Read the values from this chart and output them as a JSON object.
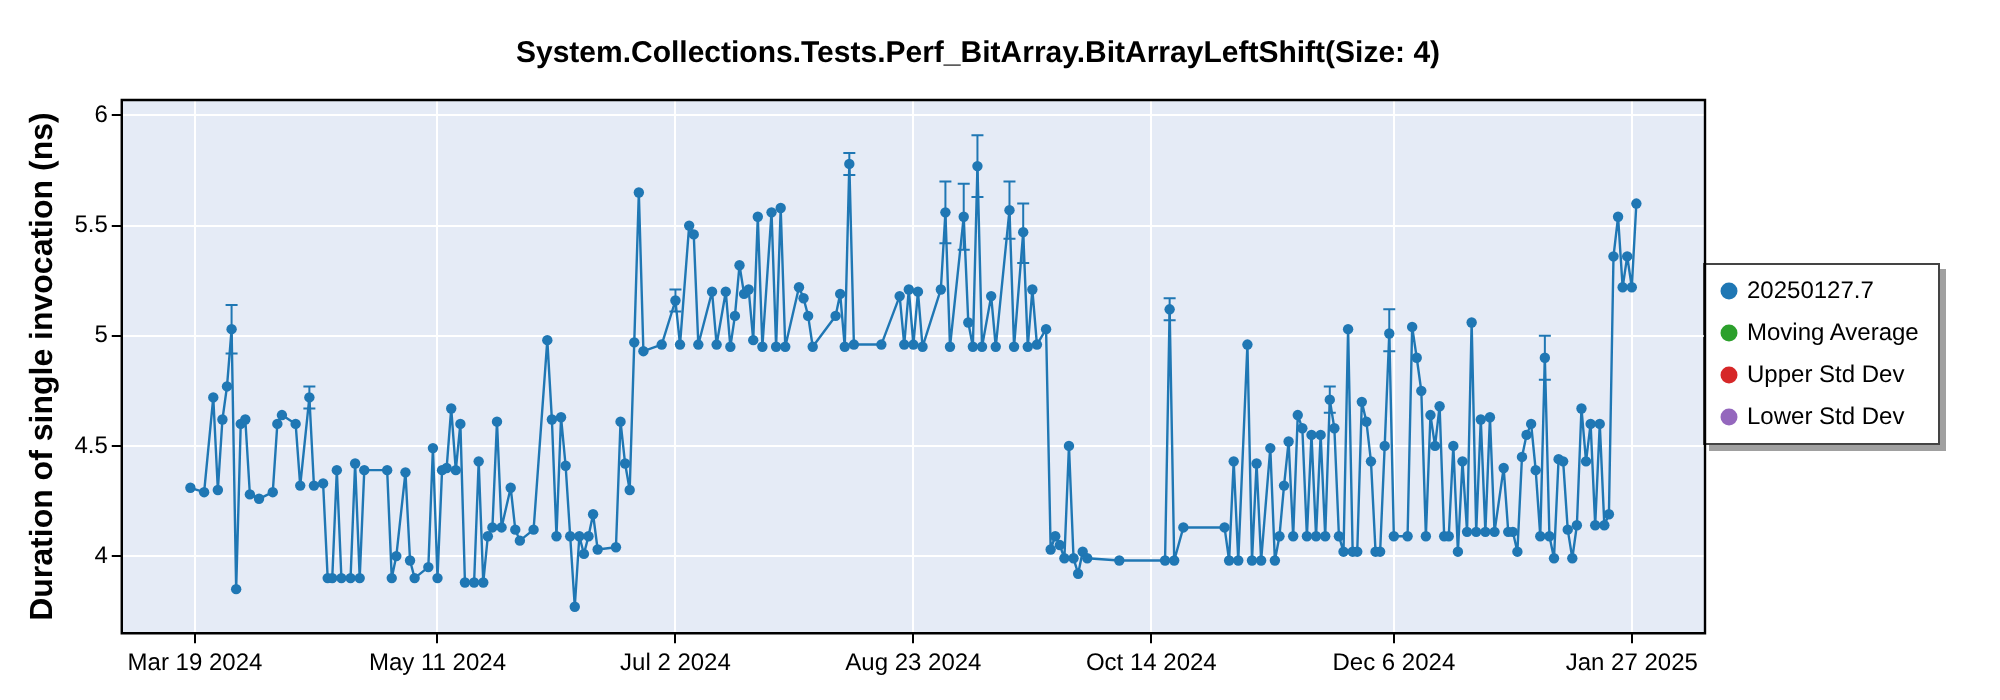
{
  "chart_data": {
    "type": "line",
    "title": "System.Collections.Tests.Perf_BitArray.BitArrayLeftShift(Size: 4)",
    "ylabel": "Duration of single invocation (ns)",
    "xlim": [
      "2024-03-03",
      "2025-02-12"
    ],
    "xticks": [
      {
        "value": "2024-03-19",
        "label": "Mar 19 2024"
      },
      {
        "value": "2024-05-11",
        "label": "May 11 2024"
      },
      {
        "value": "2024-07-02",
        "label": "Jul 2 2024"
      },
      {
        "value": "2024-08-23",
        "label": "Aug 23 2024"
      },
      {
        "value": "2024-10-14",
        "label": "Oct 14 2024"
      },
      {
        "value": "2024-12-06",
        "label": "Dec 6 2024"
      },
      {
        "value": "2025-01-27",
        "label": "Jan 27 2025"
      }
    ],
    "ylim": [
      3.65,
      6.07
    ],
    "yticks": [
      4,
      4.5,
      5,
      5.5,
      6
    ],
    "grid": true,
    "legend": "right",
    "marker": "circle",
    "line_style": "solid",
    "x": [
      "2024-03-18",
      "2024-03-21",
      "2024-03-23",
      "2024-03-24",
      "2024-03-25",
      "2024-03-26",
      "2024-03-27",
      "2024-03-28",
      "2024-03-29",
      "2024-03-30",
      "2024-03-31",
      "2024-04-02",
      "2024-04-05",
      "2024-04-06",
      "2024-04-07",
      "2024-04-10",
      "2024-04-11",
      "2024-04-13",
      "2024-04-14",
      "2024-04-16",
      "2024-04-17",
      "2024-04-18",
      "2024-04-19",
      "2024-04-20",
      "2024-04-22",
      "2024-04-23",
      "2024-04-24",
      "2024-04-25",
      "2024-04-30",
      "2024-05-01",
      "2024-05-02",
      "2024-05-04",
      "2024-05-05",
      "2024-05-06",
      "2024-05-09",
      "2024-05-10",
      "2024-05-11",
      "2024-05-12",
      "2024-05-13",
      "2024-05-14",
      "2024-05-15",
      "2024-05-16",
      "2024-05-17",
      "2024-05-19",
      "2024-05-20",
      "2024-05-21",
      "2024-05-22",
      "2024-05-23",
      "2024-05-24",
      "2024-05-25",
      "2024-05-27",
      "2024-05-28",
      "2024-05-29",
      "2024-06-01",
      "2024-06-04",
      "2024-06-05",
      "2024-06-06",
      "2024-06-07",
      "2024-06-08",
      "2024-06-09",
      "2024-06-10",
      "2024-06-11",
      "2024-06-12",
      "2024-06-13",
      "2024-06-14",
      "2024-06-15",
      "2024-06-19",
      "2024-06-20",
      "2024-06-21",
      "2024-06-22",
      "2024-06-23",
      "2024-06-24",
      "2024-06-25",
      "2024-06-29",
      "2024-07-02",
      "2024-07-03",
      "2024-07-05",
      "2024-07-06",
      "2024-07-07",
      "2024-07-10",
      "2024-07-11",
      "2024-07-13",
      "2024-07-14",
      "2024-07-15",
      "2024-07-16",
      "2024-07-17",
      "2024-07-18",
      "2024-07-19",
      "2024-07-20",
      "2024-07-21",
      "2024-07-23",
      "2024-07-24",
      "2024-07-25",
      "2024-07-26",
      "2024-07-29",
      "2024-07-30",
      "2024-07-31",
      "2024-08-01",
      "2024-08-06",
      "2024-08-07",
      "2024-08-08",
      "2024-08-09",
      "2024-08-10",
      "2024-08-16",
      "2024-08-20",
      "2024-08-21",
      "2024-08-22",
      "2024-08-23",
      "2024-08-24",
      "2024-08-25",
      "2024-08-29",
      "2024-08-30",
      "2024-08-31",
      "2024-09-03",
      "2024-09-04",
      "2024-09-05",
      "2024-09-06",
      "2024-09-07",
      "2024-09-09",
      "2024-09-10",
      "2024-09-13",
      "2024-09-14",
      "2024-09-16",
      "2024-09-17",
      "2024-09-18",
      "2024-09-19",
      "2024-09-21",
      "2024-09-22",
      "2024-09-23",
      "2024-09-24",
      "2024-09-25",
      "2024-09-26",
      "2024-09-27",
      "2024-09-28",
      "2024-09-29",
      "2024-09-30",
      "2024-10-07",
      "2024-10-17",
      "2024-10-18",
      "2024-10-19",
      "2024-10-21",
      "2024-10-30",
      "2024-10-31",
      "2024-11-01",
      "2024-11-02",
      "2024-11-04",
      "2024-11-05",
      "2024-11-06",
      "2024-11-07",
      "2024-11-09",
      "2024-11-10",
      "2024-11-11",
      "2024-11-12",
      "2024-11-13",
      "2024-11-14",
      "2024-11-15",
      "2024-11-16",
      "2024-11-17",
      "2024-11-18",
      "2024-11-19",
      "2024-11-20",
      "2024-11-21",
      "2024-11-22",
      "2024-11-23",
      "2024-11-24",
      "2024-11-25",
      "2024-11-26",
      "2024-11-27",
      "2024-11-28",
      "2024-11-29",
      "2024-11-30",
      "2024-12-01",
      "2024-12-02",
      "2024-12-03",
      "2024-12-04",
      "2024-12-05",
      "2024-12-06",
      "2024-12-09",
      "2024-12-10",
      "2024-12-11",
      "2024-12-12",
      "2024-12-13",
      "2024-12-14",
      "2024-12-15",
      "2024-12-16",
      "2024-12-17",
      "2024-12-18",
      "2024-12-19",
      "2024-12-20",
      "2024-12-21",
      "2024-12-22",
      "2024-12-23",
      "2024-12-24",
      "2024-12-25",
      "2024-12-26",
      "2024-12-27",
      "2024-12-28",
      "2024-12-30",
      "2024-12-31",
      "2025-01-01",
      "2025-01-02",
      "2025-01-03",
      "2025-01-04",
      "2025-01-05",
      "2025-01-06",
      "2025-01-07",
      "2025-01-08",
      "2025-01-09",
      "2025-01-10",
      "2025-01-11",
      "2025-01-12",
      "2025-01-13",
      "2025-01-14",
      "2025-01-15",
      "2025-01-16",
      "2025-01-17",
      "2025-01-18",
      "2025-01-19",
      "2025-01-20",
      "2025-01-21",
      "2025-01-22",
      "2025-01-23",
      "2025-01-24",
      "2025-01-25",
      "2025-01-26",
      "2025-01-27",
      "2025-01-28"
    ],
    "series": [
      {
        "name": "20250127.7",
        "color": "#1f77b4",
        "values": [
          4.31,
          4.29,
          4.72,
          4.3,
          4.62,
          4.77,
          5.03,
          3.85,
          4.6,
          4.62,
          4.28,
          4.26,
          4.29,
          4.6,
          4.64,
          4.6,
          4.32,
          4.72,
          4.32,
          4.33,
          3.9,
          3.9,
          4.39,
          3.9,
          3.9,
          4.42,
          3.9,
          4.39,
          4.39,
          3.9,
          4.0,
          4.38,
          3.98,
          3.9,
          3.95,
          4.49,
          3.9,
          4.39,
          4.4,
          4.67,
          4.39,
          4.6,
          3.88,
          3.88,
          4.43,
          3.88,
          4.09,
          4.13,
          4.61,
          4.13,
          4.31,
          4.12,
          4.07,
          4.12,
          4.98,
          4.62,
          4.09,
          4.63,
          4.41,
          4.09,
          3.77,
          4.09,
          4.01,
          4.09,
          4.19,
          4.03,
          4.04,
          4.61,
          4.42,
          4.3,
          4.97,
          5.65,
          4.93,
          4.96,
          5.16,
          4.96,
          5.5,
          5.46,
          4.96,
          5.2,
          4.96,
          5.2,
          4.95,
          5.09,
          5.32,
          5.19,
          5.21,
          4.98,
          5.54,
          4.95,
          5.56,
          4.95,
          5.58,
          4.95,
          5.22,
          5.17,
          5.09,
          4.95,
          5.09,
          5.19,
          4.95,
          5.78,
          4.96,
          4.96,
          5.18,
          4.96,
          5.21,
          4.96,
          5.2,
          4.95,
          5.21,
          5.56,
          4.95,
          5.54,
          5.06,
          4.95,
          5.77,
          4.95,
          5.18,
          4.95,
          5.57,
          4.95,
          5.47,
          4.95,
          5.21,
          4.96,
          5.03,
          4.03,
          4.09,
          4.05,
          3.99,
          4.5,
          3.99,
          3.92,
          4.02,
          3.99,
          3.98,
          3.98,
          5.12,
          3.98,
          4.13,
          4.13,
          3.98,
          4.43,
          3.98,
          4.96,
          3.98,
          4.42,
          3.98,
          4.49,
          3.98,
          4.09,
          4.32,
          4.52,
          4.09,
          4.64,
          4.58,
          4.09,
          4.55,
          4.09,
          4.55,
          4.09,
          4.71,
          4.58,
          4.09,
          4.02,
          5.03,
          4.02,
          4.02,
          4.7,
          4.61,
          4.43,
          4.02,
          4.02,
          4.5,
          5.01,
          4.09,
          4.09,
          5.04,
          4.9,
          4.75,
          4.09,
          4.64,
          4.5,
          4.68,
          4.09,
          4.09,
          4.5,
          4.02,
          4.43,
          4.11,
          5.06,
          4.11,
          4.62,
          4.11,
          4.63,
          4.11,
          4.4,
          4.11,
          4.11,
          4.02,
          4.45,
          4.55,
          4.6,
          4.39,
          4.09,
          4.9,
          4.09,
          3.99,
          4.44,
          4.43,
          4.12,
          3.99,
          4.14,
          4.67,
          4.43,
          4.6,
          4.14,
          4.6,
          4.14,
          4.19,
          5.36,
          5.54,
          5.22,
          5.36,
          5.22,
          5.6
        ],
        "errors": [
          null,
          null,
          null,
          null,
          null,
          null,
          [
            4.92,
            5.14
          ],
          null,
          null,
          null,
          null,
          null,
          null,
          null,
          null,
          null,
          null,
          0.05,
          null,
          null,
          null,
          null,
          null,
          null,
          null,
          null,
          null,
          null,
          null,
          null,
          null,
          null,
          null,
          null,
          null,
          null,
          null,
          null,
          null,
          null,
          null,
          null,
          null,
          null,
          null,
          null,
          null,
          null,
          null,
          null,
          null,
          null,
          null,
          null,
          null,
          null,
          null,
          null,
          null,
          null,
          null,
          null,
          null,
          null,
          null,
          null,
          null,
          null,
          null,
          null,
          null,
          null,
          null,
          null,
          0.05,
          null,
          null,
          null,
          null,
          null,
          null,
          null,
          null,
          null,
          null,
          null,
          null,
          null,
          null,
          null,
          null,
          null,
          null,
          null,
          null,
          null,
          null,
          null,
          null,
          null,
          null,
          0.05,
          null,
          null,
          null,
          null,
          null,
          null,
          null,
          null,
          null,
          [
            5.42,
            5.7
          ],
          null,
          [
            5.39,
            5.69
          ],
          null,
          null,
          [
            5.63,
            5.91
          ],
          null,
          null,
          null,
          [
            5.44,
            5.7
          ],
          null,
          [
            5.33,
            5.6
          ],
          null,
          null,
          null,
          null,
          null,
          null,
          null,
          null,
          null,
          null,
          null,
          null,
          null,
          null,
          null,
          0.05,
          null,
          null,
          null,
          null,
          null,
          null,
          null,
          null,
          null,
          null,
          null,
          null,
          null,
          null,
          null,
          null,
          null,
          null,
          null,
          null,
          null,
          null,
          null,
          0.06,
          null,
          null,
          null,
          null,
          null,
          null,
          null,
          null,
          null,
          null,
          null,
          null,
          [
            4.93,
            5.12
          ],
          null,
          null,
          null,
          null,
          null,
          null,
          null,
          null,
          null,
          null,
          null,
          null,
          null,
          null,
          null,
          null,
          null,
          null,
          null,
          null,
          null,
          null,
          null,
          null,
          null,
          null,
          null,
          null,
          null,
          null,
          0.1,
          null,
          null,
          null,
          null,
          null,
          null,
          null,
          null,
          null,
          null,
          null,
          null,
          null,
          null,
          null,
          null,
          null,
          null,
          null,
          null
        ]
      },
      {
        "name": "Moving Average",
        "color": "#2ca02c",
        "values": [
          null,
          null,
          null,
          null,
          null,
          null,
          null,
          null,
          null,
          null,
          null,
          null,
          null,
          null,
          null,
          null,
          null,
          null,
          null,
          null,
          null,
          null,
          null,
          null,
          null,
          null,
          null,
          null,
          null,
          null,
          null,
          null,
          null,
          null,
          null,
          null,
          null,
          null,
          null,
          null,
          null,
          null,
          null,
          null,
          null,
          null,
          null,
          null,
          null,
          null,
          null,
          null,
          null,
          null,
          null,
          null,
          null,
          null,
          null,
          null,
          null,
          null,
          null,
          null,
          null,
          null,
          null,
          null,
          null,
          null,
          null,
          null,
          null,
          null,
          null,
          null,
          null,
          null,
          null,
          null,
          null,
          null,
          null,
          null,
          null,
          null,
          null,
          null,
          null,
          null,
          null,
          null,
          null,
          null,
          null,
          null,
          null,
          null,
          null,
          null,
          null,
          null,
          null,
          null,
          null,
          null,
          null,
          null,
          null,
          null,
          null,
          null,
          null,
          null,
          null,
          null,
          null,
          null,
          null,
          null,
          null,
          null,
          null,
          null,
          null,
          null,
          null,
          null,
          null,
          null,
          null,
          null,
          null,
          null,
          null,
          null,
          null,
          null,
          null,
          null,
          null,
          null,
          null,
          null,
          null,
          null,
          null,
          null,
          null,
          null,
          null,
          null,
          null,
          null,
          null,
          null,
          null,
          null,
          null,
          null,
          null,
          null,
          null,
          null,
          null,
          null,
          null,
          null,
          null,
          null,
          null,
          null,
          null,
          null,
          null,
          null,
          null,
          null,
          null,
          null,
          null,
          null,
          null,
          null,
          null,
          null,
          null,
          null,
          null,
          null,
          null,
          null,
          null,
          null,
          null,
          null,
          null,
          null,
          null,
          null,
          null,
          null,
          null,
          null,
          null,
          null,
          null,
          null,
          null,
          null,
          null,
          null,
          null,
          null,
          null,
          null,
          null,
          null,
          null,
          null,
          null,
          null,
          null,
          null,
          null,
          null,
          null
        ]
      },
      {
        "name": "Upper Std Dev",
        "color": "#d62728",
        "values": [
          null,
          null,
          null,
          null,
          null,
          null,
          null,
          null,
          null,
          null,
          null,
          null,
          null,
          null,
          null,
          null,
          null,
          null,
          null,
          null,
          null,
          null,
          null,
          null,
          null,
          null,
          null,
          null,
          null,
          null,
          null,
          null,
          null,
          null,
          null,
          null,
          null,
          null,
          null,
          null,
          null,
          null,
          null,
          null,
          null,
          null,
          null,
          null,
          null,
          null,
          null,
          null,
          null,
          null,
          null,
          null,
          null,
          null,
          null,
          null,
          null,
          null,
          null,
          null,
          null,
          null,
          null,
          null,
          null,
          null,
          null,
          null,
          null,
          null,
          null,
          null,
          null,
          null,
          null,
          null,
          null,
          null,
          null,
          null,
          null,
          null,
          null,
          null,
          null,
          null,
          null,
          null,
          null,
          null,
          null,
          null,
          null,
          null,
          null,
          null,
          null,
          null,
          null,
          null,
          null,
          null,
          null,
          null,
          null,
          null,
          null,
          null,
          null,
          null,
          null,
          null,
          null,
          null,
          null,
          null,
          null,
          null,
          null,
          null,
          null,
          null,
          null,
          null,
          null,
          null,
          null,
          null,
          null,
          null,
          null,
          null,
          null,
          null,
          null,
          null,
          null,
          null,
          null,
          null,
          null,
          null,
          null,
          null,
          null,
          null,
          null,
          null,
          null,
          null,
          null,
          null,
          null,
          null,
          null,
          null,
          null,
          null,
          null,
          null,
          null,
          null,
          null,
          null,
          null,
          null,
          null,
          null,
          null,
          null,
          null,
          null,
          null,
          null,
          null,
          null,
          null,
          null,
          null,
          null,
          null,
          null,
          null,
          null,
          null,
          null,
          null,
          null,
          null,
          null,
          null,
          null,
          null,
          null,
          null,
          null,
          null,
          null,
          null,
          null,
          null,
          null,
          null,
          null,
          null,
          null,
          null,
          null,
          null,
          null,
          null,
          null,
          null,
          null,
          null,
          null,
          null,
          null,
          null,
          null,
          null,
          null,
          null
        ]
      },
      {
        "name": "Lower Std Dev",
        "color": "#9467bd",
        "values": [
          null,
          null,
          null,
          null,
          null,
          null,
          null,
          null,
          null,
          null,
          null,
          null,
          null,
          null,
          null,
          null,
          null,
          null,
          null,
          null,
          null,
          null,
          null,
          null,
          null,
          null,
          null,
          null,
          null,
          null,
          null,
          null,
          null,
          null,
          null,
          null,
          null,
          null,
          null,
          null,
          null,
          null,
          null,
          null,
          null,
          null,
          null,
          null,
          null,
          null,
          null,
          null,
          null,
          null,
          null,
          null,
          null,
          null,
          null,
          null,
          null,
          null,
          null,
          null,
          null,
          null,
          null,
          null,
          null,
          null,
          null,
          null,
          null,
          null,
          null,
          null,
          null,
          null,
          null,
          null,
          null,
          null,
          null,
          null,
          null,
          null,
          null,
          null,
          null,
          null,
          null,
          null,
          null,
          null,
          null,
          null,
          null,
          null,
          null,
          null,
          null,
          null,
          null,
          null,
          null,
          null,
          null,
          null,
          null,
          null,
          null,
          null,
          null,
          null,
          null,
          null,
          null,
          null,
          null,
          null,
          null,
          null,
          null,
          null,
          null,
          null,
          null,
          null,
          null,
          null,
          null,
          null,
          null,
          null,
          null,
          null,
          null,
          null,
          null,
          null,
          null,
          null,
          null,
          null,
          null,
          null,
          null,
          null,
          null,
          null,
          null,
          null,
          null,
          null,
          null,
          null,
          null,
          null,
          null,
          null,
          null,
          null,
          null,
          null,
          null,
          null,
          null,
          null,
          null,
          null,
          null,
          null,
          null,
          null,
          null,
          null,
          null,
          null,
          null,
          null,
          null,
          null,
          null,
          null,
          null,
          null,
          null,
          null,
          null,
          null,
          null,
          null,
          null,
          null,
          null,
          null,
          null,
          null,
          null,
          null,
          null,
          null,
          null,
          null,
          null,
          null,
          null,
          null,
          null,
          null,
          null,
          null,
          null,
          null,
          null,
          null,
          null,
          null,
          null,
          null,
          null,
          null,
          null,
          null,
          null,
          null,
          null
        ]
      }
    ]
  }
}
